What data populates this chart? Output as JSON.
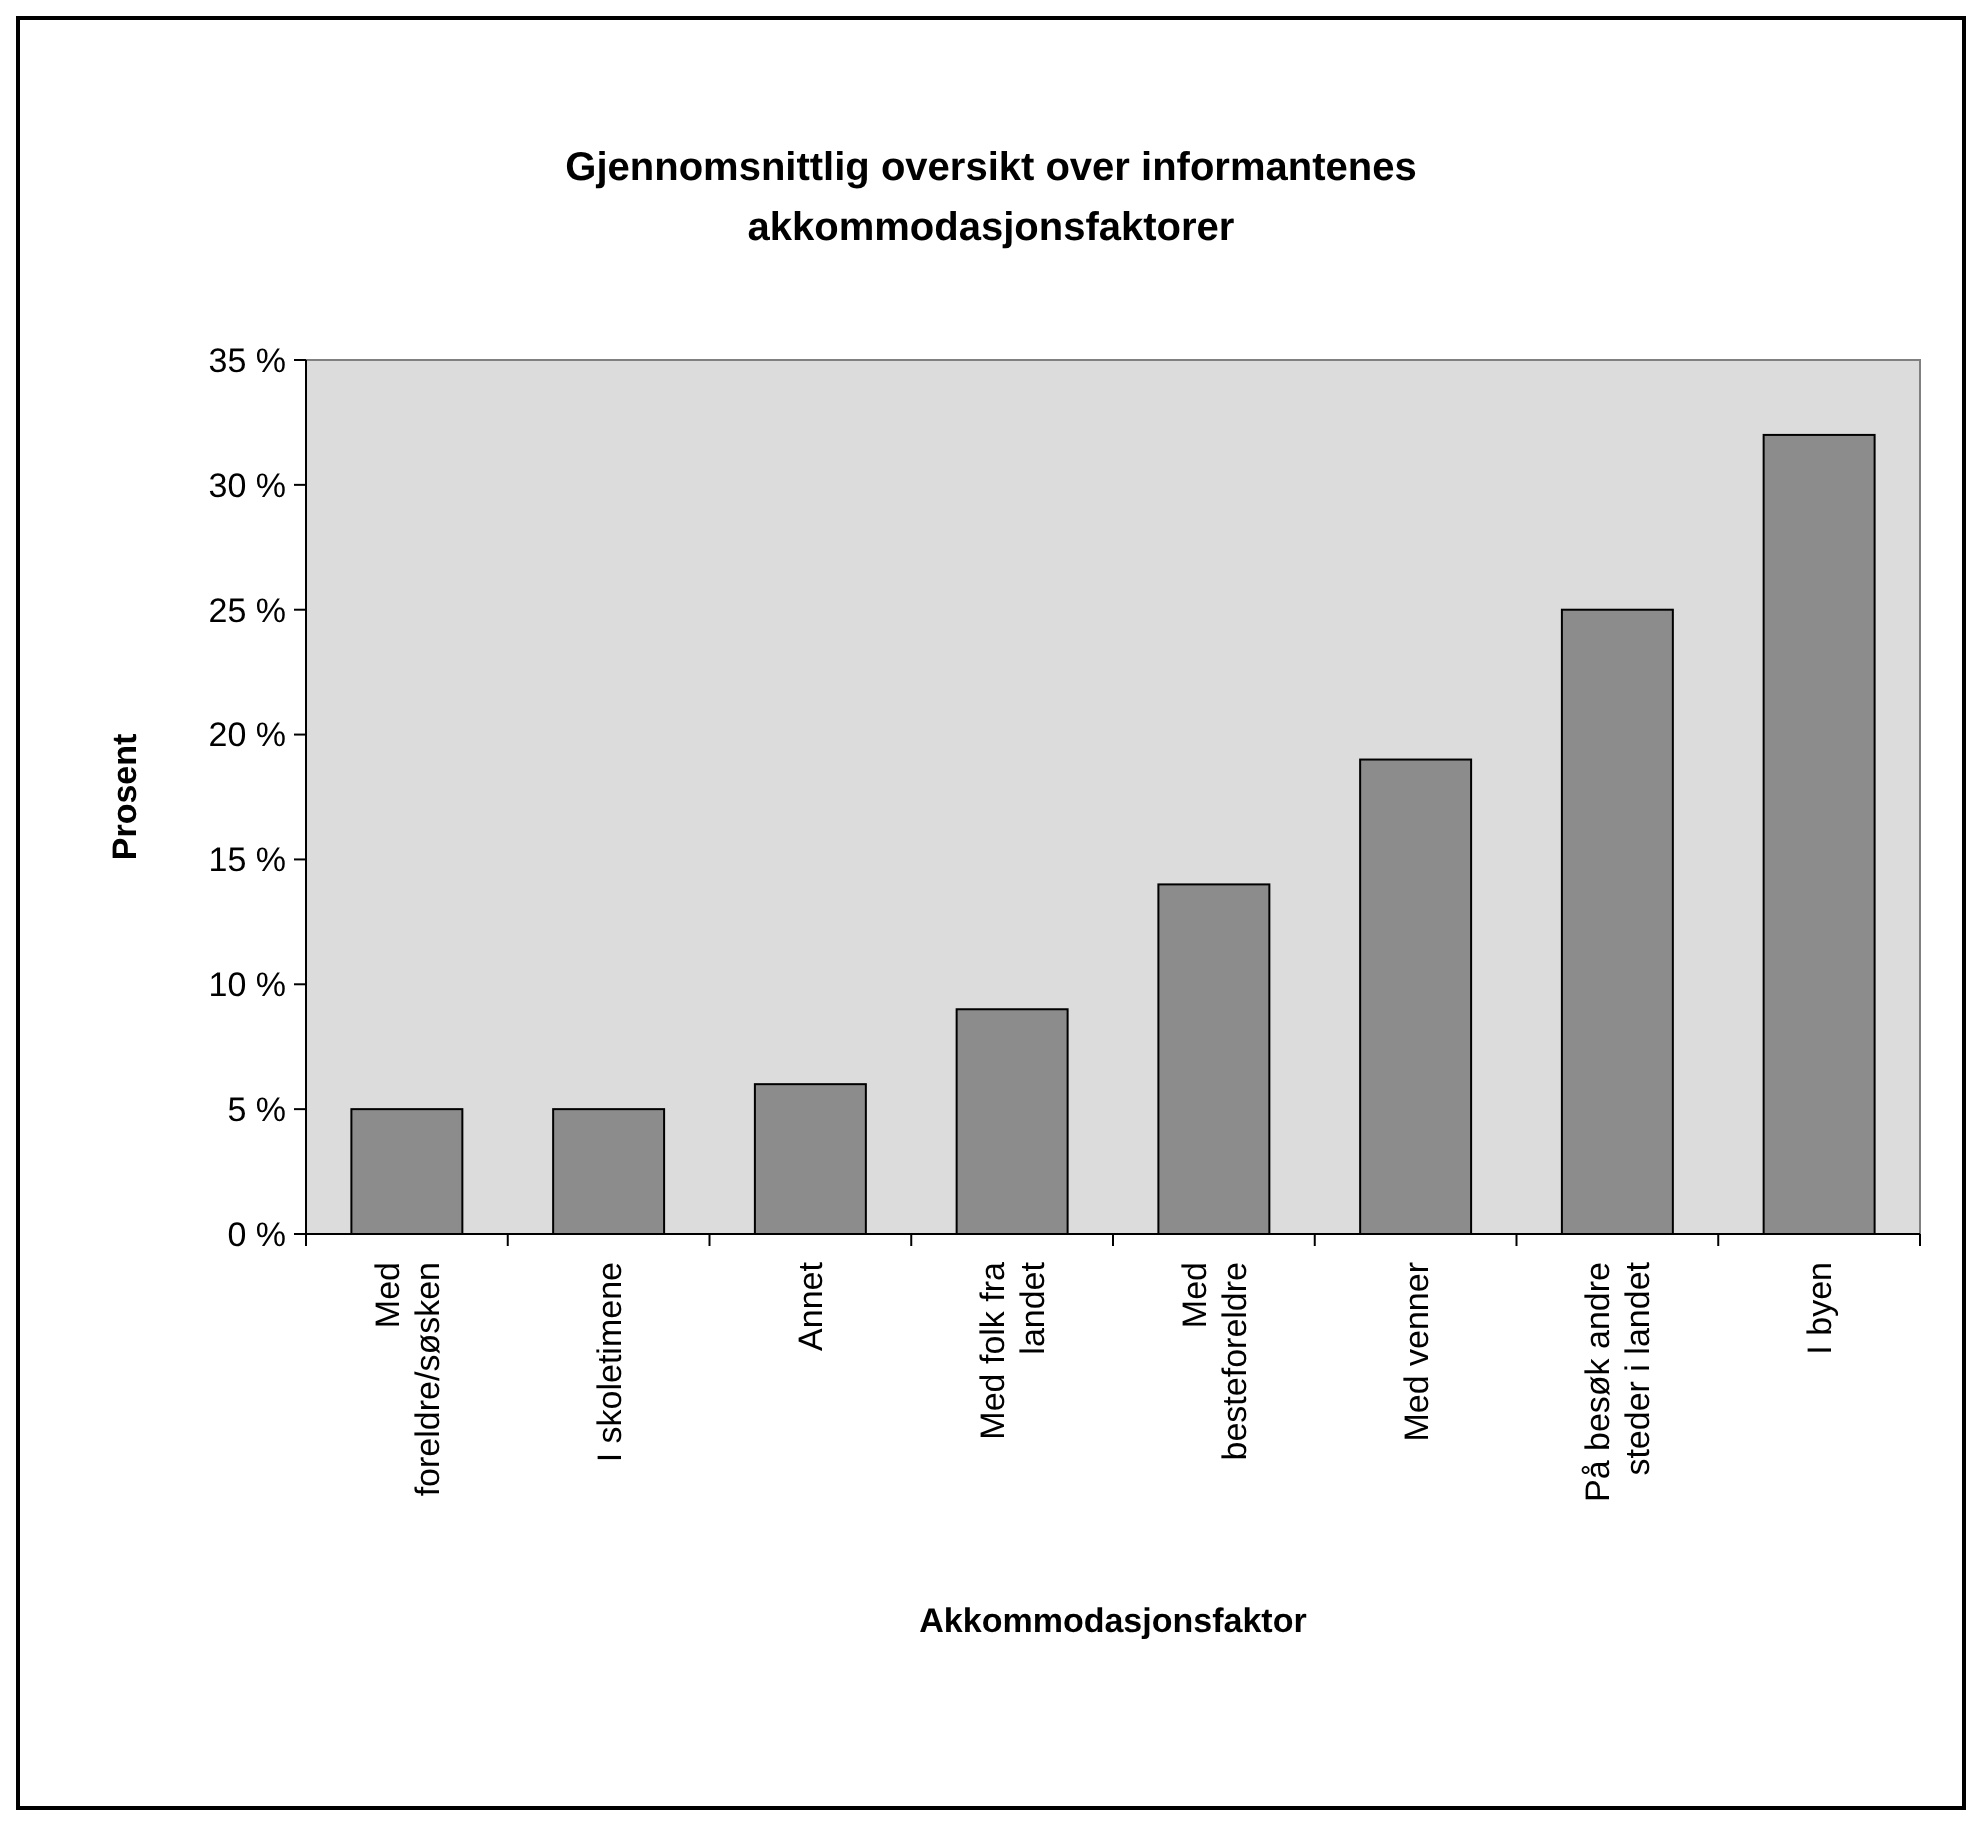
{
  "chart_data": {
    "type": "bar",
    "title": "Gjennomsnittlig oversikt over informantenes akkommodasjonsfaktorer",
    "xlabel": "Akkommodasjonsfaktor",
    "ylabel": "Prosent",
    "categories": [
      "Med foreldre/søsken",
      "I skoletimene",
      "Annet",
      "Med folk fra landet",
      "Med besteforeldre",
      "Med venner",
      "På besøk andre steder i landet",
      "I byen"
    ],
    "values": [
      5,
      5,
      6,
      9,
      14,
      19,
      25,
      32
    ],
    "color": "#8c8c8c",
    "ylim": [
      0,
      35
    ],
    "yticks": [
      {
        "value": 0,
        "label": "0 %"
      },
      {
        "value": 5,
        "label": "5 %"
      },
      {
        "value": 10,
        "label": "10 %"
      },
      {
        "value": 15,
        "label": "15 %"
      },
      {
        "value": 20,
        "label": "20 %"
      },
      {
        "value": 25,
        "label": "25 %"
      },
      {
        "value": 30,
        "label": "30 %"
      },
      {
        "value": 35,
        "label": "35 %"
      }
    ],
    "marker": "none"
  }
}
